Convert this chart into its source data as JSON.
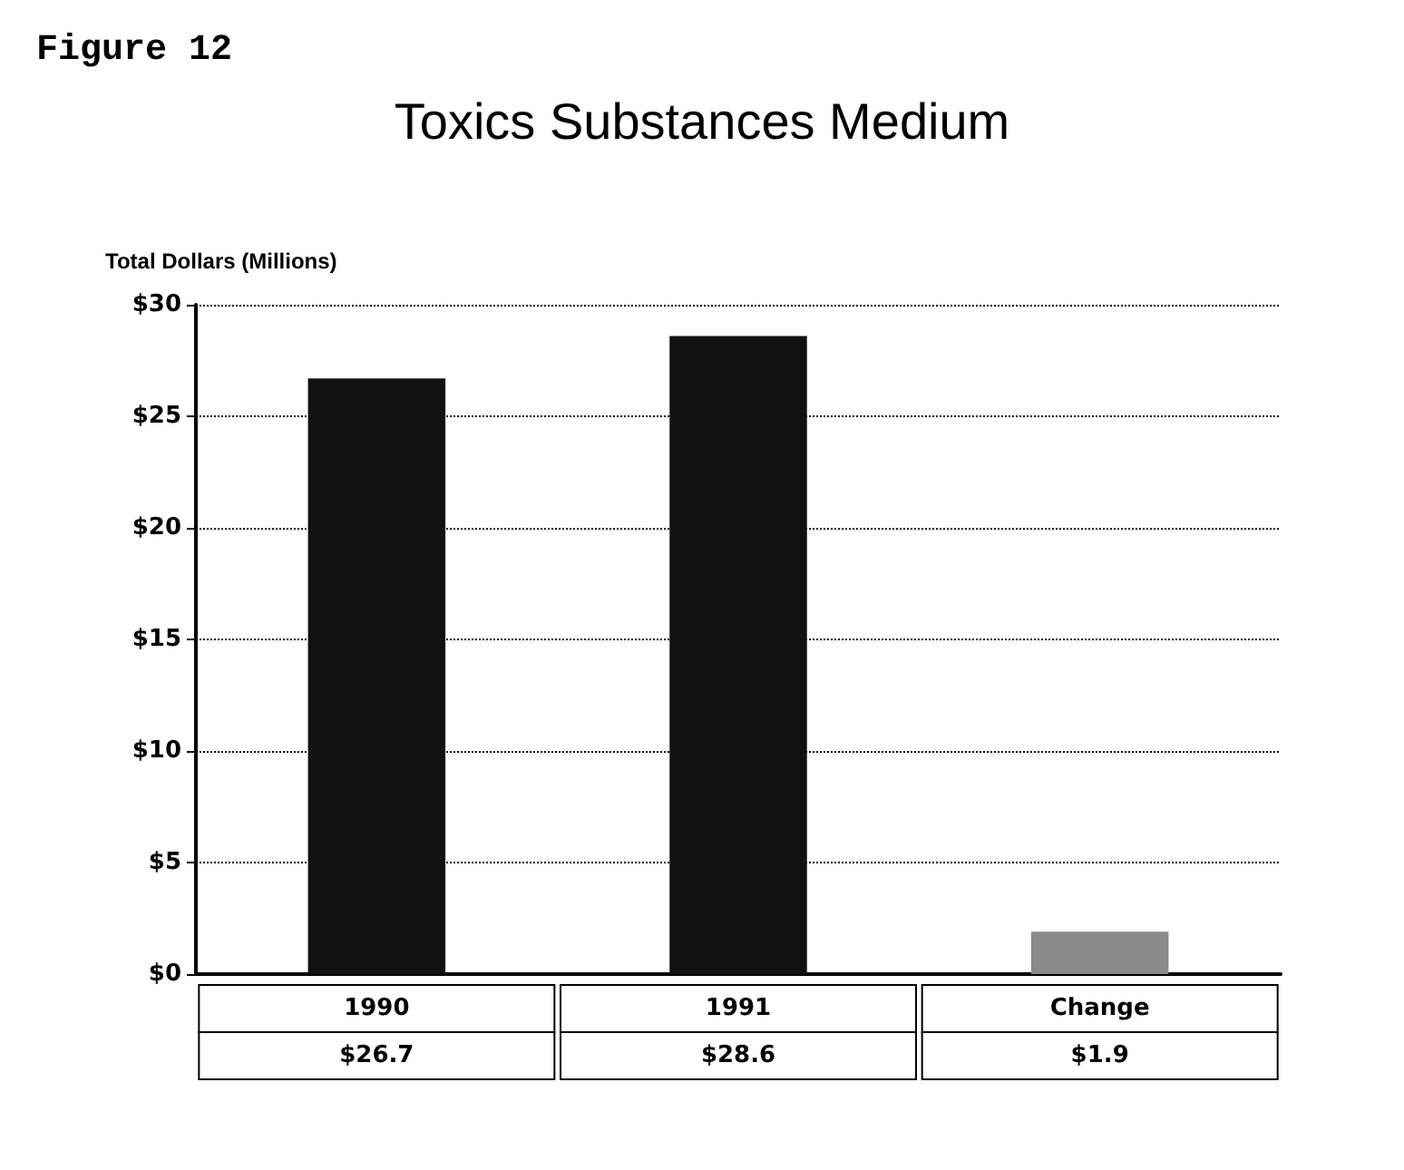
{
  "chart_data": {
    "type": "bar",
    "title": "Toxics Substances Medium",
    "ylabel": "Total Dollars (Millions)",
    "annotations": [
      "Figure 12"
    ],
    "categories": [
      "1990",
      "1991",
      "Change"
    ],
    "values": [
      26.7,
      28.6,
      1.9
    ],
    "colors": [
      "#111111",
      "#111111",
      "#8a8a8a"
    ],
    "value_labels": [
      "$26.7",
      "$28.6",
      "$1.9"
    ],
    "ylim": [
      0,
      30
    ],
    "yticks": [
      {
        "value": 0,
        "label": "$0"
      },
      {
        "value": 5,
        "label": "$5"
      },
      {
        "value": 10,
        "label": "$10"
      },
      {
        "value": 15,
        "label": "$15"
      },
      {
        "value": 20,
        "label": "$20"
      },
      {
        "value": 25,
        "label": "$25"
      },
      {
        "value": 30,
        "label": "$30"
      }
    ],
    "grid": "y",
    "line_style": "dotted"
  }
}
